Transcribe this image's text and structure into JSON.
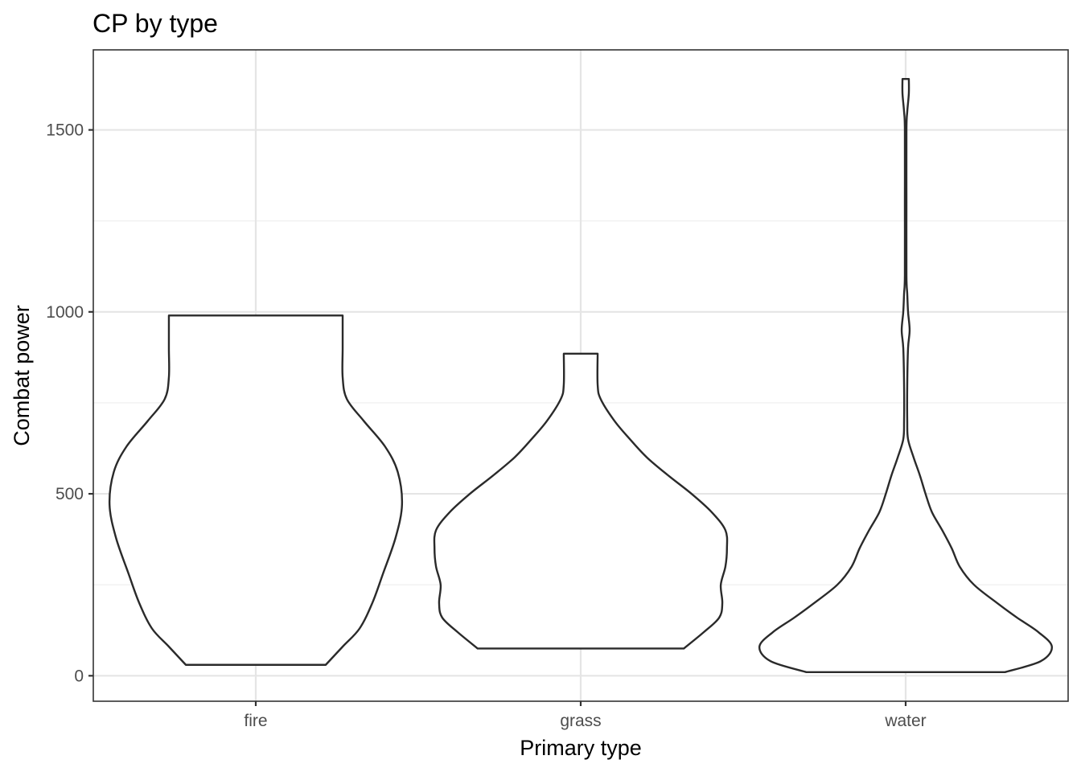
{
  "chart_data": {
    "type": "violin",
    "title": "CP by type",
    "xlabel": "Primary type",
    "ylabel": "Combat power",
    "categories": [
      "fire",
      "grass",
      "water"
    ],
    "ylim": [
      -70,
      1720
    ],
    "y_ticks": [
      0,
      500,
      1000,
      1500
    ],
    "y_tick_labels": [
      "0",
      "500",
      "1000",
      "1500"
    ],
    "grid": true,
    "series": [
      {
        "category": "fire",
        "min": 30,
        "max": 990,
        "density": [
          [
            30,
            0.33
          ],
          [
            80,
            0.41
          ],
          [
            130,
            0.49
          ],
          [
            200,
            0.55
          ],
          [
            280,
            0.6
          ],
          [
            380,
            0.66
          ],
          [
            470,
            0.69
          ],
          [
            560,
            0.67
          ],
          [
            630,
            0.61
          ],
          [
            700,
            0.51
          ],
          [
            760,
            0.43
          ],
          [
            820,
            0.41
          ],
          [
            900,
            0.41
          ],
          [
            990,
            0.41
          ]
        ]
      },
      {
        "category": "grass",
        "min": 75,
        "max": 885,
        "density": [
          [
            75,
            0.67
          ],
          [
            120,
            0.8
          ],
          [
            160,
            0.9
          ],
          [
            200,
            0.92
          ],
          [
            250,
            0.91
          ],
          [
            300,
            0.94
          ],
          [
            350,
            0.95
          ],
          [
            400,
            0.94
          ],
          [
            450,
            0.85
          ],
          [
            500,
            0.72
          ],
          [
            550,
            0.57
          ],
          [
            600,
            0.43
          ],
          [
            650,
            0.32
          ],
          [
            700,
            0.22
          ],
          [
            760,
            0.13
          ],
          [
            800,
            0.11
          ],
          [
            885,
            0.11
          ]
        ]
      },
      {
        "category": "water",
        "min": 10,
        "max": 1640,
        "density": [
          [
            10,
            1.25
          ],
          [
            40,
            1.7
          ],
          [
            80,
            1.84
          ],
          [
            120,
            1.67
          ],
          [
            160,
            1.4
          ],
          [
            200,
            1.15
          ],
          [
            250,
            0.86
          ],
          [
            300,
            0.68
          ],
          [
            350,
            0.58
          ],
          [
            400,
            0.46
          ],
          [
            450,
            0.33
          ],
          [
            500,
            0.25
          ],
          [
            550,
            0.18
          ],
          [
            600,
            0.1
          ],
          [
            650,
            0.03
          ],
          [
            700,
            0.02
          ],
          [
            800,
            0.02
          ],
          [
            900,
            0.03
          ],
          [
            950,
            0.05
          ],
          [
            1000,
            0.03
          ],
          [
            1050,
            0.02
          ],
          [
            1100,
            0.01
          ],
          [
            1300,
            0.01
          ],
          [
            1500,
            0.01
          ],
          [
            1550,
            0.02
          ],
          [
            1600,
            0.04
          ],
          [
            1640,
            0.04
          ]
        ]
      }
    ]
  }
}
